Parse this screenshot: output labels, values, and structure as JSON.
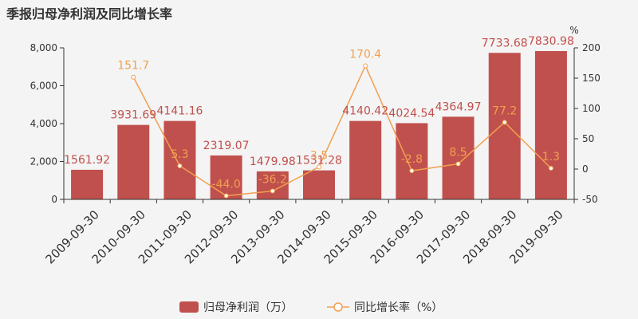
{
  "chart_data": {
    "type": "bar",
    "title": "季报归母净利润及同比增长率",
    "categories": [
      "2009-09-30",
      "2010-09-30",
      "2011-09-30",
      "2012-09-30",
      "2013-09-30",
      "2014-09-30",
      "2015-09-30",
      "2016-09-30",
      "2017-09-30",
      "2018-09-30",
      "2019-09-30"
    ],
    "series": [
      {
        "name": "归母净利润（万）",
        "type": "bar",
        "axis": "left",
        "values": [
          1561.92,
          3931.69,
          4141.16,
          2319.07,
          1479.98,
          1531.28,
          4140.42,
          4024.54,
          4364.97,
          7733.68,
          7830.98
        ],
        "labels": [
          "1561.92",
          "3931.69",
          "4141.16",
          "2319.07",
          "1479.98",
          "1531.28",
          "4140.42",
          "4024.54",
          "4364.97",
          "7733.68",
          "7830.98"
        ]
      },
      {
        "name": "同比增长率（%）",
        "type": "line",
        "axis": "right",
        "values": [
          null,
          151.7,
          5.3,
          -44.0,
          -36.2,
          3.5,
          170.4,
          -2.8,
          8.5,
          77.2,
          1.3
        ],
        "labels": [
          "",
          "151.7",
          "5.3",
          "-44.0",
          "-36.2",
          "3.5",
          "170.4",
          "-2.8",
          "8.5",
          "77.2",
          "1.3"
        ]
      }
    ],
    "y_left": {
      "range": [
        0,
        8000
      ],
      "ticks": [
        0,
        2000,
        4000,
        6000,
        8000
      ],
      "tick_labels": [
        "0",
        "2,000",
        "4,000",
        "6,000",
        "8,000"
      ]
    },
    "y_right": {
      "label": "%",
      "range": [
        -50,
        200
      ],
      "ticks": [
        -50,
        0,
        50,
        100,
        150,
        200
      ],
      "tick_labels": [
        "-50",
        "0",
        "50",
        "100",
        "150",
        "200"
      ]
    },
    "grid": false,
    "legend_position": "bottom-center",
    "colors": {
      "bar": "#c0504d",
      "line": "#f0a050",
      "axis": "#333333"
    }
  }
}
